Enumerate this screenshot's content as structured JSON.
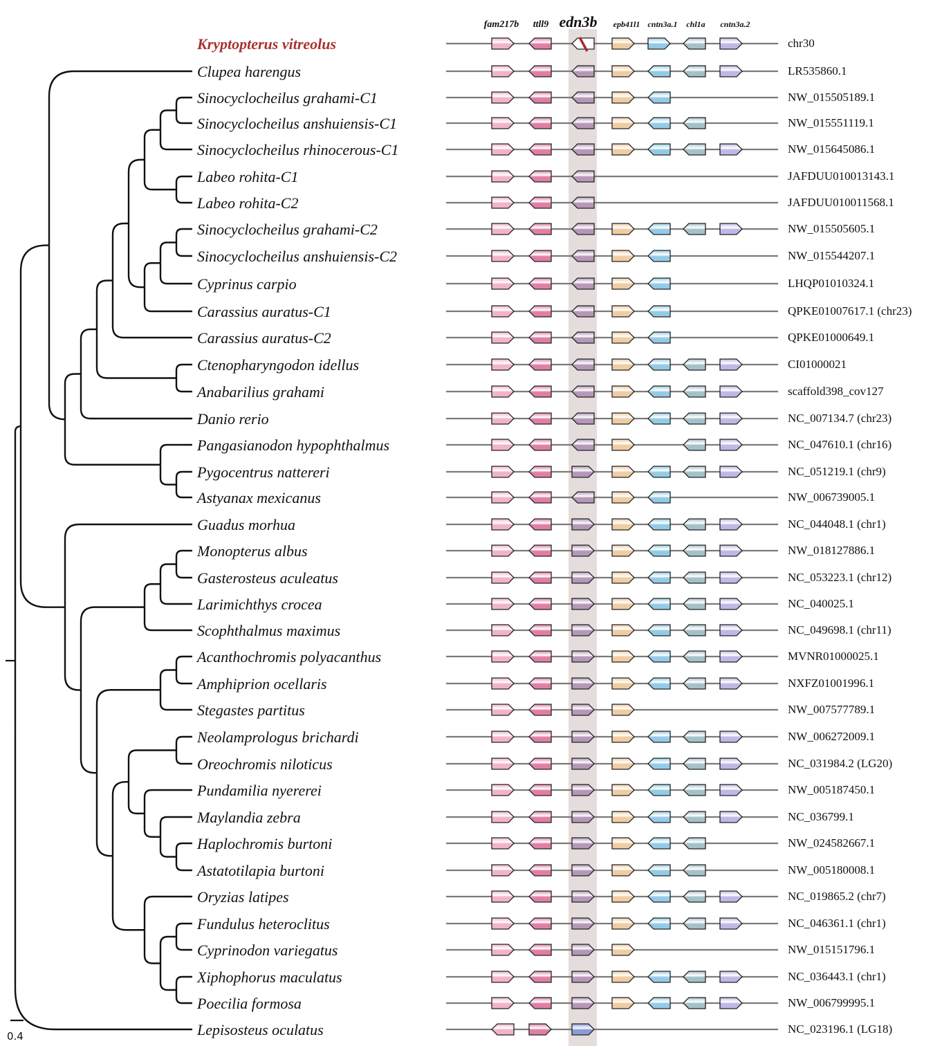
{
  "highlight_gene": "edn3b",
  "genes": [
    {
      "name": "fam217b",
      "color": "#f2b3c8"
    },
    {
      "name": "ttll9",
      "color": "#e07ea6"
    },
    {
      "name": "edn3b",
      "color": "#b597b8"
    },
    {
      "name": "epb41l1",
      "color": "#f0cca2"
    },
    {
      "name": "cntn3a.1",
      "color": "#92cbe6"
    },
    {
      "name": "chl1a",
      "color": "#a4c0c9"
    },
    {
      "name": "cntn3a.2",
      "color": "#bdb8e6"
    }
  ],
  "colors": {
    "highlight_band": "#e4dddb",
    "target_species": "#a83232",
    "pseudogene_mark": "#a82a2a",
    "line": "#7a7a7a",
    "lepisosteus_edn3b": "#8b9bd8"
  },
  "scale_bar": {
    "label": "0.4"
  },
  "rows": [
    {
      "species": "Kryptopterus  vitreolus",
      "acc": "chr30",
      "target": true,
      "genes": [
        "R",
        "L",
        "P",
        "R",
        "R",
        "L",
        "R"
      ]
    },
    {
      "species": "Clupea harengus",
      "acc": "LR535860.1",
      "genes": [
        "R",
        "L",
        "L",
        "R",
        "L",
        "L",
        "R"
      ]
    },
    {
      "species": "Sinocyclocheilus grahami-C1",
      "acc": "NW_015505189.1",
      "genes": [
        "R",
        "L",
        "L",
        "R",
        "L",
        null,
        null
      ]
    },
    {
      "species": "Sinocyclocheilus anshuiensis-C1",
      "acc": "NW_015551119.1",
      "genes": [
        "R",
        "L",
        "L",
        "R",
        "L",
        "L",
        null
      ]
    },
    {
      "species": "Sinocyclocheilus rhinocerous-C1",
      "acc": "NW_015645086.1",
      "genes": [
        "R",
        "L",
        "L",
        "R",
        "L",
        "L",
        "R"
      ]
    },
    {
      "species": "Labeo rohita-C1",
      "acc": "JAFDUU010013143.1",
      "genes": [
        "R",
        "L",
        "L",
        null,
        null,
        null,
        null
      ]
    },
    {
      "species": "Labeo rohita-C2",
      "acc": "JAFDUU010011568.1",
      "genes": [
        "R",
        "L",
        "L",
        null,
        null,
        null,
        null
      ]
    },
    {
      "species": "Sinocyclocheilus grahami-C2",
      "acc": "NW_015505605.1",
      "genes": [
        "R",
        "L",
        "L",
        "R",
        "L",
        "L",
        "R"
      ]
    },
    {
      "species": "Sinocyclocheilus anshuiensis-C2",
      "acc": "NW_015544207.1",
      "genes": [
        "R",
        "L",
        "L",
        "R",
        "L",
        null,
        null
      ]
    },
    {
      "species": "Cyprinus carpio",
      "acc": "LHQP01010324.1",
      "genes": [
        "R",
        "L",
        "L",
        "R",
        "L",
        null,
        null
      ]
    },
    {
      "species": "Carassius auratus-C1",
      "acc": "QPKE01007617.1 (chr23)",
      "genes": [
        "R",
        "L",
        "L",
        "R",
        "L",
        null,
        null
      ]
    },
    {
      "species": "Carassius auratus-C2",
      "acc": "QPKE01000649.1",
      "genes": [
        "R",
        "L",
        "L",
        "R",
        "L",
        null,
        null
      ]
    },
    {
      "species": "Ctenopharyngodon idellus",
      "acc": "CI01000021",
      "genes": [
        "R",
        "L",
        "L",
        "R",
        "L",
        "L",
        "R"
      ]
    },
    {
      "species": "Anabarilius grahami",
      "acc": "scaffold398_cov127",
      "genes": [
        "R",
        "L",
        "L",
        "R",
        "L",
        "L",
        "R"
      ]
    },
    {
      "species": "Danio rerio",
      "acc": "NC_007134.7 (chr23)",
      "genes": [
        "R",
        "L",
        "L",
        "R",
        "L",
        "L",
        "R"
      ]
    },
    {
      "species": "Pangasianodon hypophthalmus",
      "acc": "NC_047610.1 (chr16)",
      "genes": [
        "R",
        "L",
        "L",
        "R",
        null,
        "L",
        "R"
      ]
    },
    {
      "species": "Pygocentrus nattereri",
      "acc": "NC_051219.1 (chr9)",
      "genes": [
        "R",
        "L",
        "R",
        "R",
        "L",
        "L",
        "R"
      ]
    },
    {
      "species": "Astyanax mexicanus",
      "acc": "NW_006739005.1",
      "genes": [
        "R",
        "L",
        "L",
        "R",
        "L",
        null,
        null
      ]
    },
    {
      "species": "Guadus morhua",
      "acc": "NC_044048.1 (chr1)",
      "genes": [
        "R",
        "L",
        "R",
        "R",
        "L",
        "L",
        "R"
      ]
    },
    {
      "species": "Monopterus albus",
      "acc": "NW_018127886.1",
      "genes": [
        "R",
        "L",
        "R",
        "R",
        "L",
        "L",
        "R"
      ]
    },
    {
      "species": "Gasterosteus aculeatus",
      "acc": "NC_053223.1 (chr12)",
      "genes": [
        "R",
        "L",
        "R",
        "R",
        "L",
        "L",
        "R"
      ]
    },
    {
      "species": "Larimichthys crocea",
      "acc": "NC_040025.1",
      "genes": [
        "R",
        "L",
        "R",
        "R",
        "L",
        "L",
        "R"
      ]
    },
    {
      "species": "Scophthalmus maximus",
      "acc": "NC_049698.1 (chr11)",
      "genes": [
        "R",
        "L",
        "R",
        "R",
        "L",
        "L",
        "R"
      ]
    },
    {
      "species": "Acanthochromis polyacanthus",
      "acc": "MVNR01000025.1",
      "genes": [
        "R",
        "L",
        "R",
        "R",
        "L",
        "L",
        "R"
      ]
    },
    {
      "species": "Amphiprion ocellaris",
      "acc": "NXFZ01001996.1",
      "genes": [
        "R",
        "L",
        "R",
        "R",
        "L",
        "L",
        "R"
      ]
    },
    {
      "species": "Stegastes partitus",
      "acc": "NW_007577789.1",
      "genes": [
        "R",
        "L",
        "R",
        "R",
        null,
        null,
        null
      ]
    },
    {
      "species": "Neolamprologus brichardi",
      "acc": "NW_006272009.1",
      "genes": [
        "R",
        "L",
        "R",
        "R",
        "L",
        "L",
        "R"
      ]
    },
    {
      "species": "Oreochromis niloticus",
      "acc": "NC_031984.2 (LG20)",
      "genes": [
        "R",
        "L",
        "R",
        "R",
        "L",
        "L",
        "R"
      ]
    },
    {
      "species": "Pundamilia nyererei",
      "acc": "NW_005187450.1",
      "genes": [
        "R",
        "L",
        "R",
        "R",
        "L",
        "L",
        "R"
      ]
    },
    {
      "species": "Maylandia zebra",
      "acc": "NC_036799.1",
      "genes": [
        "R",
        "L",
        "R",
        "R",
        "L",
        "L",
        "R"
      ]
    },
    {
      "species": "Haplochromis burtoni",
      "acc": "NW_024582667.1",
      "genes": [
        "R",
        "L",
        "R",
        "R",
        "L",
        "L",
        null
      ]
    },
    {
      "species": "Astatotilapia burtoni",
      "acc": "NW_005180008.1",
      "genes": [
        "R",
        "L",
        "R",
        "R",
        "L",
        "L",
        null
      ]
    },
    {
      "species": "Oryzias latipes",
      "acc": "NC_019865.2 (chr7)",
      "genes": [
        "R",
        "L",
        "R",
        "R",
        "L",
        "L",
        "R"
      ]
    },
    {
      "species": "Fundulus heteroclitus",
      "acc": "NC_046361.1  (chr1)",
      "genes": [
        "R",
        "L",
        "R",
        "R",
        "L",
        "L",
        "R"
      ]
    },
    {
      "species": "Cyprinodon variegatus",
      "acc": "NW_015151796.1",
      "genes": [
        "R",
        "L",
        "R",
        "R",
        null,
        null,
        null
      ]
    },
    {
      "species": "Xiphophorus maculatus",
      "acc": "NC_036443.1 (chr1)",
      "genes": [
        "R",
        "L",
        "R",
        "R",
        "L",
        "L",
        "R"
      ]
    },
    {
      "species": "Poecilia formosa",
      "acc": "NW_006799995.1",
      "genes": [
        "R",
        "L",
        "R",
        "R",
        "L",
        "L",
        "R"
      ]
    },
    {
      "species": "Lepisosteus oculatus",
      "acc": "NC_023196.1 (LG18)",
      "genes": [
        "L",
        "R",
        "B",
        null,
        null,
        null,
        null
      ]
    }
  ],
  "tree": [
    [
      [
        1,
        [
          [
            [
              [
                [
                  [
                    [
                      [
                        2,
                        3
                      ],
                      4
                    ],
                    [
                      5,
                      6
                    ]
                  ],
                  [
                    [
                      [
                        7,
                        8
                      ],
                      9
                    ],
                    10
                  ]
                ],
                11
              ],
              [
                12,
                13
              ]
            ],
            14
          ],
          [
            15,
            [
              16,
              17
            ]
          ]
        ]
      ],
      [
        18,
        [
          [
            [
              [
                19,
                20
              ],
              21
            ],
            22
          ],
          [
            [
              [
                23,
                24
              ],
              25
            ],
            [
              [
                [
                  26,
                  27
                ],
                [
                  28,
                  [
                    29,
                    [
                      30,
                      31
                    ]
                  ]
                ]
              ],
              [
                32,
                [
                  [
                    33,
                    34
                  ],
                  [
                    35,
                    36
                  ]
                ]
              ]
            ]
          ]
        ]
      ]
    ],
    37
  ]
}
